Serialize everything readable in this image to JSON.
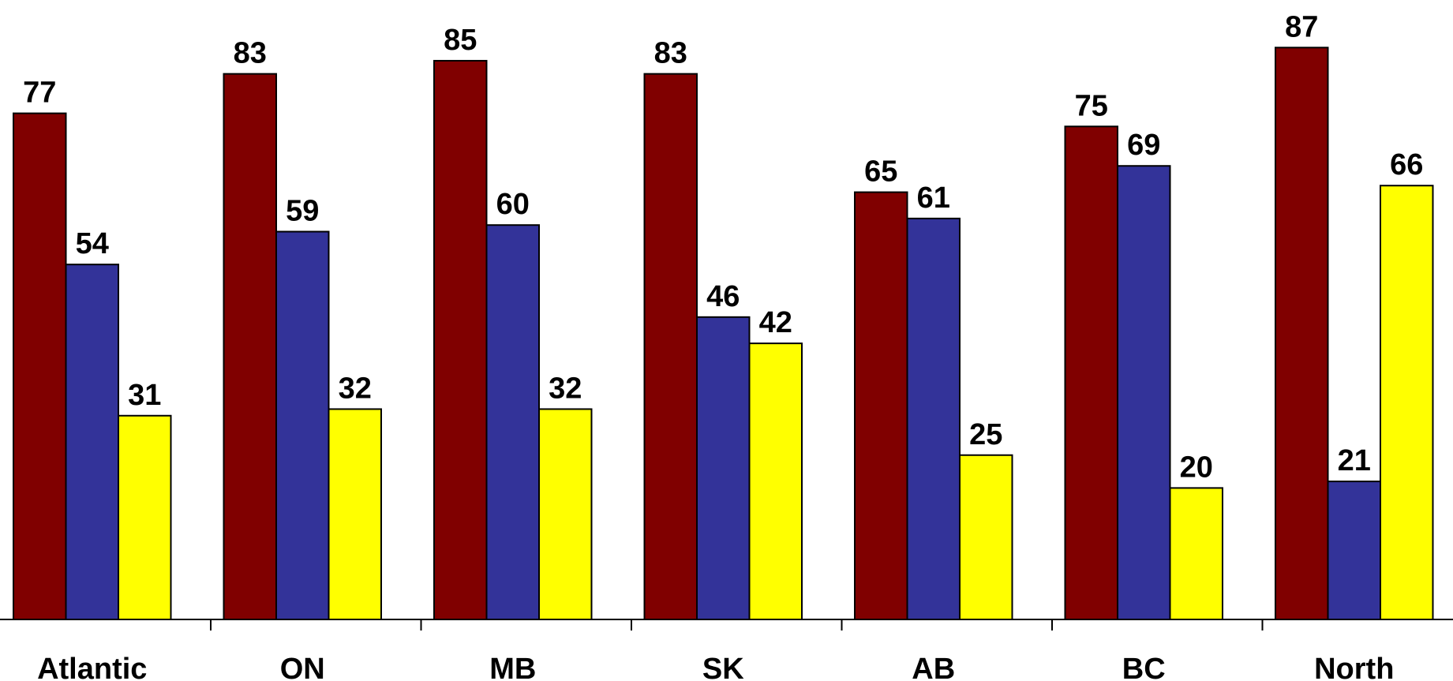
{
  "chart_data": {
    "type": "bar",
    "categories": [
      "Atlantic",
      "ON",
      "MB",
      "SK",
      "AB",
      "BC",
      "North"
    ],
    "series": [
      {
        "color": "#800000",
        "values": [
          77,
          83,
          85,
          83,
          65,
          75,
          87
        ]
      },
      {
        "color": "#333399",
        "values": [
          54,
          59,
          60,
          46,
          61,
          69,
          21
        ]
      },
      {
        "color": "#ffff00",
        "values": [
          31,
          32,
          32,
          42,
          25,
          20,
          66
        ]
      }
    ],
    "ylim": [
      0,
      100
    ],
    "grid": false,
    "data_labels": true
  }
}
